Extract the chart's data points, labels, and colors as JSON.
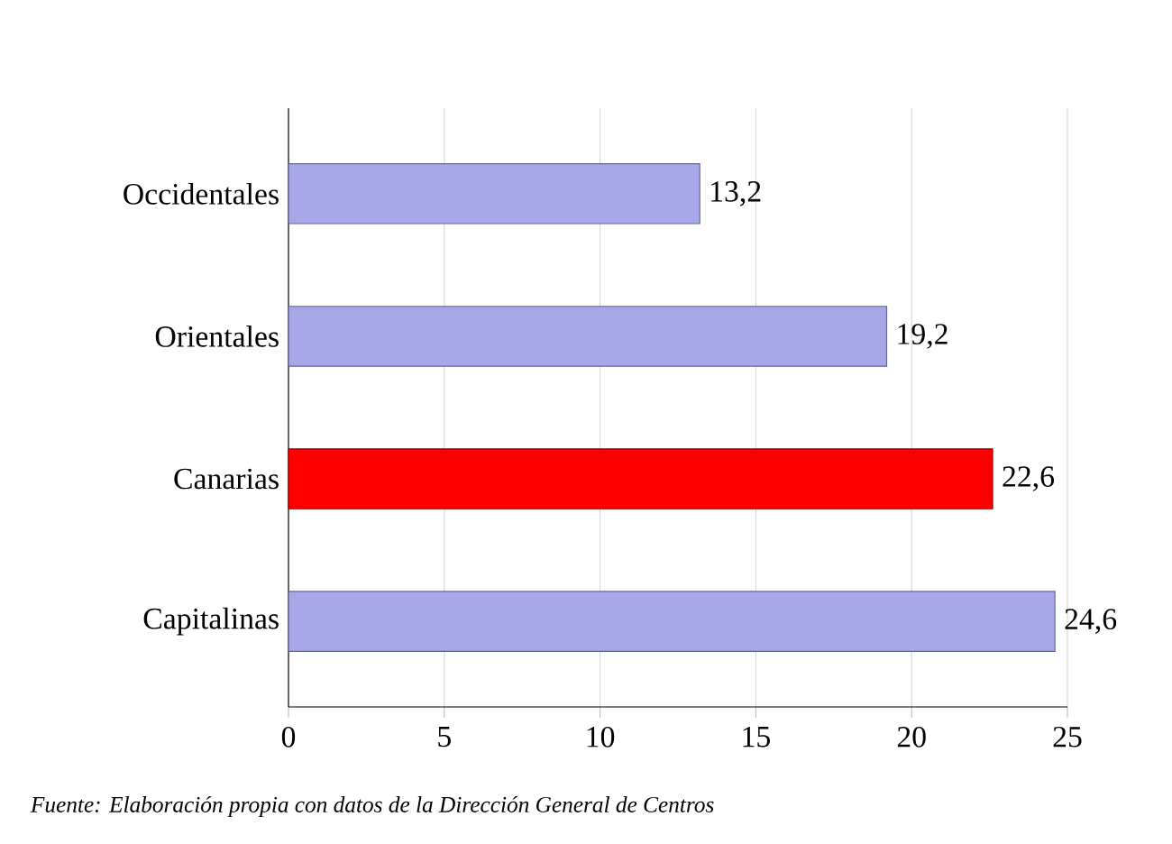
{
  "chart_data": {
    "type": "bar",
    "orientation": "horizontal",
    "categories": [
      "Occidentales",
      "Orientales",
      "Canarias",
      "Capitalinas"
    ],
    "values": [
      13.2,
      19.2,
      22.6,
      24.6
    ],
    "colors": [
      "#a8a8e8",
      "#a8a8e8",
      "#ff0000",
      "#a8a8e8"
    ],
    "value_labels": [
      "13,2",
      "19,2",
      "22,6",
      "24,6"
    ],
    "xlim": [
      0,
      25
    ],
    "xticks": [
      0,
      5,
      10,
      15,
      20,
      25
    ],
    "grid": "x",
    "annotations": [
      "Fuente: Elaboración propia con datos de la Dirección General de Centros"
    ]
  }
}
